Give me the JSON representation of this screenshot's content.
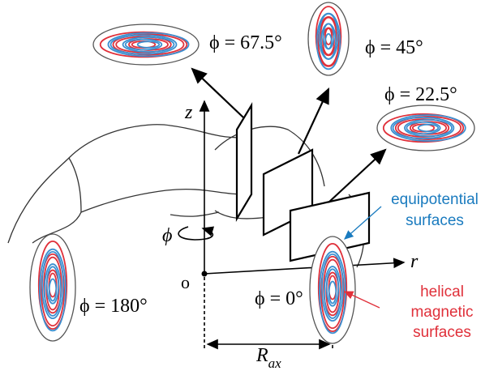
{
  "labels": {
    "phi_67": "ϕ = 67.5°",
    "phi_45": "ϕ = 45°",
    "phi_22": "ϕ = 22.5°",
    "phi_180": "ϕ = 180°",
    "phi_0": "ϕ = 0°"
  },
  "axes": {
    "z": "z",
    "r": "r",
    "phi": "ϕ",
    "origin": "o",
    "radius": {
      "main": "R",
      "sub": "ax"
    }
  },
  "annotations": {
    "equipotential": [
      "equipotential",
      "surfaces"
    ],
    "helical": [
      "helical",
      "magnetic",
      "surfaces"
    ]
  }
}
